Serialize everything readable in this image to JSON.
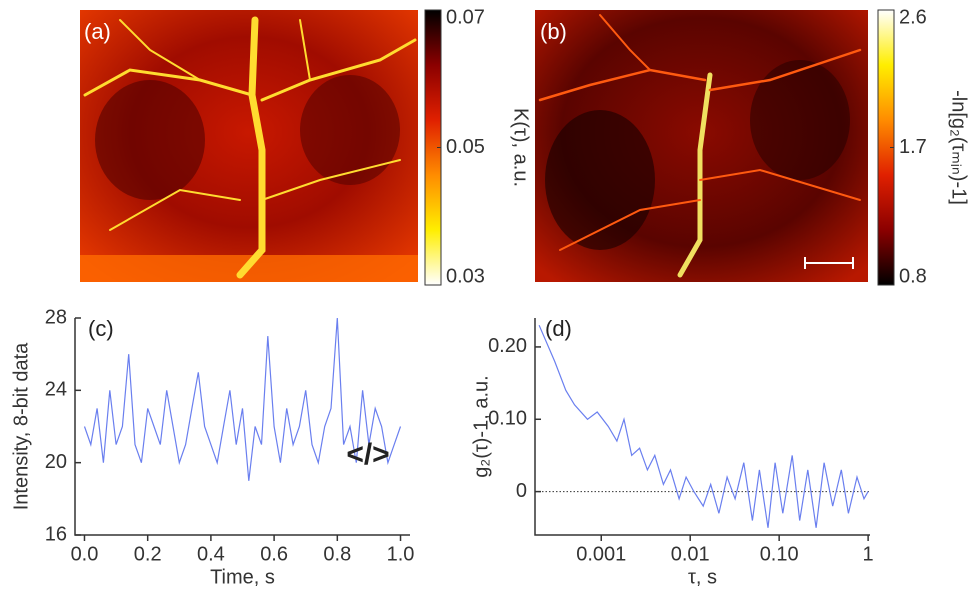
{
  "chart_data": [
    {
      "type": "image",
      "label": "(a)",
      "colorbar": {
        "label": "K(τ), a.u.",
        "lim": [
          0.03,
          0.07
        ],
        "ticks": [
          0.07,
          0.05,
          0.03
        ],
        "colors": [
          "#000000",
          "#8b0000",
          "#e02000",
          "#ff8c00",
          "#ffee00",
          "#ffffff"
        ]
      }
    },
    {
      "type": "image",
      "label": "(b)",
      "colorbar": {
        "label": "-ln[g₂(τₘᵢₙ)-1]",
        "lim": [
          0.8,
          2.6
        ],
        "ticks": [
          2.6,
          1.7,
          0.8
        ],
        "colors": [
          "#ffffff",
          "#ffee00",
          "#ff8c00",
          "#e02000",
          "#8b0000",
          "#000000"
        ]
      }
    },
    {
      "type": "line",
      "label": "(c)",
      "xlabel": "Time, s",
      "ylabel": "Intensity, 8-bit data",
      "annotation": "</>",
      "color": "#6a7fef",
      "xlim": [
        -0.03,
        1.03
      ],
      "ylim": [
        16,
        28
      ],
      "xticks": [
        {
          "value": 0,
          "label": "0.0"
        },
        0.2,
        0.4,
        0.6,
        0.8,
        {
          "value": 1,
          "label": "1.0"
        }
      ],
      "yticks": [
        16,
        20,
        24,
        28
      ],
      "x": [
        0,
        0.02,
        0.04,
        0.06,
        0.08,
        0.1,
        0.12,
        0.14,
        0.16,
        0.18,
        0.2,
        0.22,
        0.24,
        0.26,
        0.28,
        0.3,
        0.32,
        0.34,
        0.36,
        0.38,
        0.4,
        0.42,
        0.44,
        0.46,
        0.48,
        0.5,
        0.52,
        0.54,
        0.56,
        0.58,
        0.6,
        0.62,
        0.64,
        0.66,
        0.68,
        0.7,
        0.72,
        0.74,
        0.76,
        0.78,
        0.8,
        0.82,
        0.84,
        0.86,
        0.88,
        0.9,
        0.92,
        0.94,
        0.96,
        0.98,
        1.0
      ],
      "values": [
        22,
        21,
        23,
        20,
        24,
        21,
        22,
        26,
        21,
        20,
        23,
        22,
        21,
        24,
        22,
        20,
        21,
        23,
        25,
        22,
        21,
        20,
        22,
        24,
        21,
        23,
        19,
        22,
        21,
        27,
        22,
        20,
        23,
        21,
        22,
        24,
        21,
        20,
        22,
        23,
        28,
        21,
        22,
        20,
        24,
        21,
        23,
        22,
        20,
        21,
        22
      ]
    },
    {
      "type": "line",
      "label": "(d)",
      "xlabel": "τ, s",
      "ylabel": "g₂(τ)-1, a.u.",
      "xscale": "log",
      "hline": 0,
      "color": "#6a7fef",
      "xlim": [
        0.00018,
        1.05
      ],
      "ylim": [
        -0.06,
        0.24
      ],
      "xticks": [
        0.001,
        0.01,
        {
          "value": 0.1,
          "label": "0.10"
        },
        1
      ],
      "yticks": [
        0,
        {
          "value": 0.1,
          "label": "0.10"
        },
        {
          "value": 0.2,
          "label": "0.20"
        }
      ],
      "x": [
        0.0002,
        0.0003,
        0.0004,
        0.0005,
        0.0007,
        0.0009,
        0.0012,
        0.0015,
        0.0018,
        0.0022,
        0.0027,
        0.0033,
        0.004,
        0.005,
        0.006,
        0.0075,
        0.009,
        0.011,
        0.014,
        0.017,
        0.021,
        0.026,
        0.032,
        0.04,
        0.05,
        0.06,
        0.075,
        0.09,
        0.11,
        0.14,
        0.17,
        0.21,
        0.26,
        0.32,
        0.4,
        0.5,
        0.6,
        0.75,
        0.9,
        1.0
      ],
      "values": [
        0.23,
        0.18,
        0.14,
        0.12,
        0.1,
        0.11,
        0.09,
        0.07,
        0.1,
        0.05,
        0.06,
        0.03,
        0.05,
        0.01,
        0.03,
        -0.01,
        0.02,
        0.0,
        -0.02,
        0.01,
        -0.03,
        0.02,
        -0.01,
        0.04,
        -0.04,
        0.03,
        -0.05,
        0.04,
        -0.03,
        0.05,
        -0.04,
        0.03,
        -0.05,
        0.04,
        -0.02,
        0.03,
        -0.03,
        0.02,
        -0.01,
        0.0
      ]
    }
  ]
}
